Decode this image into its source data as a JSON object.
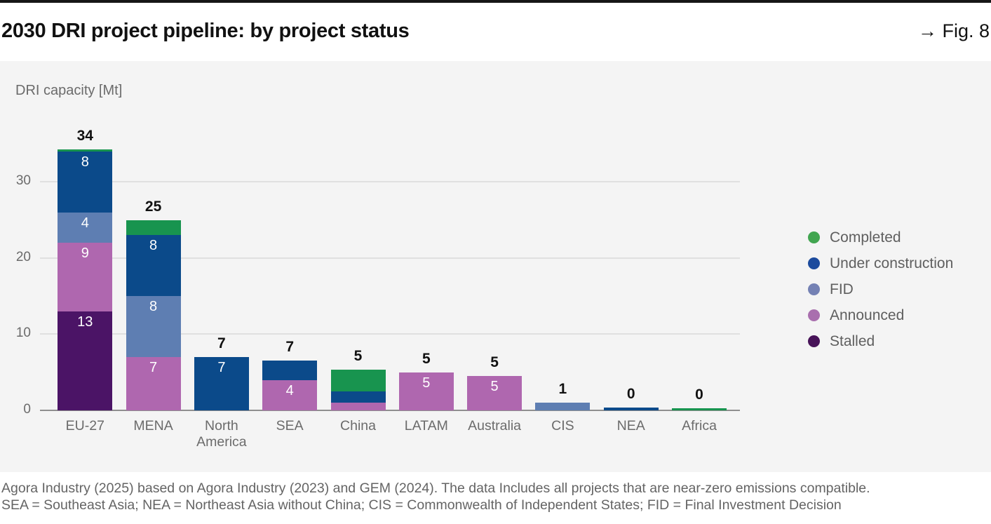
{
  "page": {
    "title": "2030 DRI project pipeline: by project status",
    "figure_label": "→ Fig. 8",
    "footer_line1": "Agora Industry (2025) based on Agora Industry (2023) and GEM (2024). The data Includes all projects that are near-zero emissions compatible.",
    "footer_line2": "SEA = Southeast Asia; NEA = Northeast Asia without China; CIS = Commonwealth of Independent States; FID = Final Investment Decision"
  },
  "chart_data": {
    "type": "bar",
    "variant": "stacked",
    "title": "2030 DRI project pipeline: by project status",
    "ylabel": "DRI capacity [Mt]",
    "xlabel": "",
    "ylim": [
      0,
      36
    ],
    "yticks": [
      0,
      10,
      20,
      30
    ],
    "grid": "horizontal",
    "legend_position": "right",
    "categories": [
      "EU-27",
      "MENA",
      "North America",
      "SEA",
      "China",
      "LATAM",
      "Australia",
      "CIS",
      "NEA",
      "Africa"
    ],
    "series": [
      {
        "name": "Completed",
        "color": "#18944f",
        "legend_color": "#41a550",
        "values": [
          0.3,
          2,
          0,
          0,
          2.8,
          0,
          0,
          0,
          0,
          0.25
        ],
        "segment_labels": [
          "",
          "",
          "",
          "",
          "",
          "",
          "",
          "",
          "",
          ""
        ]
      },
      {
        "name": "Under construction",
        "color": "#0b4a8a",
        "legend_color": "#1c4b9d",
        "values": [
          8,
          8,
          7,
          2.5,
          1.5,
          0,
          0,
          0,
          0.35,
          0
        ],
        "segment_labels": [
          "8",
          "8",
          "7",
          "",
          "",
          "",
          "",
          "",
          "",
          ""
        ]
      },
      {
        "name": "FID",
        "color": "#5e7eb2",
        "legend_color": "#7481b4",
        "values": [
          4,
          8,
          0,
          0,
          0,
          0,
          0,
          1,
          0,
          0
        ],
        "segment_labels": [
          "4",
          "8",
          "",
          "",
          "",
          "",
          "",
          "",
          "",
          ""
        ]
      },
      {
        "name": "Announced",
        "color": "#af67af",
        "legend_color": "#a96fae",
        "values": [
          9,
          7,
          0,
          4,
          1,
          5,
          4.5,
          0,
          0,
          0
        ],
        "segment_labels": [
          "9",
          "7",
          "",
          "4",
          "",
          "5",
          "5",
          "",
          "",
          ""
        ]
      },
      {
        "name": "Stalled",
        "color": "#4b1466",
        "legend_color": "#471358",
        "values": [
          13,
          0,
          0,
          0,
          0,
          0,
          0,
          0,
          0,
          0
        ],
        "segment_labels": [
          "13",
          "",
          "",
          "",
          "",
          "",
          "",
          "",
          "",
          ""
        ]
      }
    ],
    "totals": [
      "34",
      "25",
      "7",
      "7",
      "5",
      "5",
      "5",
      "1",
      "0",
      "0"
    ],
    "stack_order_bottom_to_top": [
      "Stalled",
      "Announced",
      "FID",
      "Under construction",
      "Completed"
    ]
  }
}
